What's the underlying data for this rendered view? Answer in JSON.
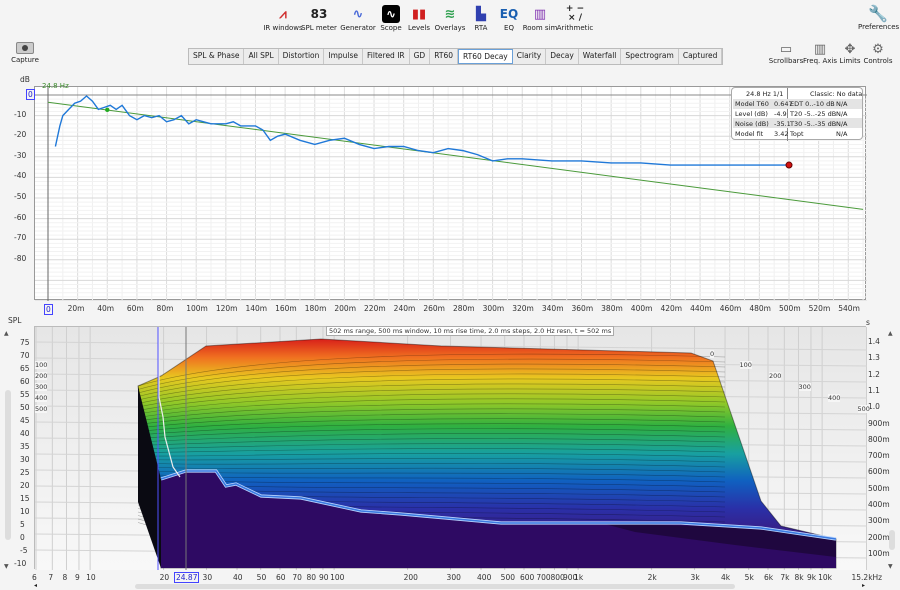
{
  "toolbar": [
    {
      "label": "IR windows",
      "icon": "ir-windows-icon"
    },
    {
      "label": "SPL meter",
      "icon": "spl-meter-icon",
      "value": "83",
      "sub": "dB SPL"
    },
    {
      "label": "Generator",
      "icon": "generator-icon"
    },
    {
      "label": "Scope",
      "icon": "scope-icon"
    },
    {
      "label": "Levels",
      "icon": "levels-icon"
    },
    {
      "label": "Overlays",
      "icon": "overlays-icon"
    },
    {
      "label": "RTA",
      "icon": "rta-icon"
    },
    {
      "label": "EQ",
      "icon": "eq-icon",
      "value": "EQ"
    },
    {
      "label": "Room sim",
      "icon": "room-sim-icon"
    },
    {
      "label": "Arithmetic",
      "icon": "arithmetic-icon",
      "value": "+ −\n× /"
    }
  ],
  "preferences": "Preferences",
  "capture": "Capture",
  "tabs": [
    "SPL & Phase",
    "All SPL",
    "Distortion",
    "Impulse",
    "Filtered IR",
    "GD",
    "RT60",
    "RT60 Decay",
    "Clarity",
    "Decay",
    "Waterfall",
    "Spectrogram",
    "Captured"
  ],
  "active_tab": "RT60 Decay",
  "right_buttons": [
    "Scrollbars",
    "Freq. Axis",
    "Limits",
    "Controls"
  ],
  "top_chart": {
    "ylabel": "dB",
    "cursor_freq": "24.8 Hz",
    "cursor_level": "0",
    "yticks": [
      "-10",
      "-20",
      "-30",
      "-40",
      "-50",
      "-60",
      "-70",
      "-80"
    ],
    "xticks": [
      "0",
      "20m",
      "40m",
      "60m",
      "80m",
      "100m",
      "120m",
      "140m",
      "160m",
      "180m",
      "200m",
      "220m",
      "240m",
      "260m",
      "280m",
      "300m",
      "320m",
      "340m",
      "360m",
      "380m",
      "400m",
      "420m",
      "440m",
      "460m",
      "480m",
      "500m",
      "520m",
      "540m"
    ],
    "info": {
      "title": "24.8 Hz 1/1",
      "classic": "Classic: No data",
      "rows": [
        [
          "Model T60",
          "0.647",
          "EDT  0..-10 dB",
          "N/A"
        ],
        [
          "Level (dB)",
          "-4.9",
          "T20 -5..-25 dB",
          "N/A"
        ],
        [
          "Noise (dB)",
          "-35.1",
          "T30 -5..-35 dB",
          "N/A"
        ],
        [
          "Model fit",
          "3.42",
          "Topt",
          "N/A"
        ]
      ]
    },
    "decay_ms": [
      5,
      8,
      10,
      14,
      18,
      22,
      26,
      30,
      34,
      38,
      42,
      46,
      50,
      55,
      60,
      65,
      70,
      75,
      80,
      85,
      90,
      95,
      100,
      105,
      110,
      120,
      125,
      130,
      140,
      145,
      150,
      155,
      160,
      170,
      180,
      190,
      200,
      210,
      220,
      230,
      240,
      250,
      260,
      270,
      280,
      290,
      300,
      310,
      320,
      340,
      360,
      380,
      400,
      420,
      440,
      460,
      480,
      500
    ],
    "decay_db": [
      -25,
      -15,
      -10,
      -7,
      -4,
      -3,
      -0.5,
      -3,
      -7,
      -6,
      -5,
      -7,
      -5,
      -10,
      -12,
      -10,
      -11,
      -10,
      -13,
      -12,
      -10,
      -14,
      -12,
      -13,
      -14,
      -14,
      -13,
      -15,
      -15,
      -17,
      -22,
      -20,
      -19,
      -22,
      -24,
      -22,
      -21,
      -24,
      -26,
      -25,
      -25,
      -27,
      -28,
      -26,
      -27,
      -29,
      -32,
      -31,
      -31,
      -32,
      -32,
      -33,
      -33,
      -34,
      -34,
      -34,
      -34,
      -34
    ],
    "model_line": {
      "t0_ms": 0,
      "db0": -3.5,
      "t1_ms": 550,
      "db1": -55.5
    },
    "colors": {
      "decay": "#1f78d8",
      "model": "#4a9a3a",
      "end_marker": "#d01010"
    }
  },
  "waterfall": {
    "ylabel": "SPL",
    "rlabel": "s",
    "info": "502 ms range, 500 ms window, 10 ms rise time, 2.0 ms steps,  2.0 Hz resn, t = 502 ms",
    "yticks": [
      "75",
      "70",
      "65",
      "60",
      "55",
      "50",
      "45",
      "40",
      "35",
      "30",
      "25",
      "20",
      "15",
      "10",
      "5",
      "0",
      "-5",
      "-10"
    ],
    "rticks": [
      "1.4",
      "1.3",
      "1.2",
      "1.1",
      "1.0",
      "900m",
      "800m",
      "700m",
      "600m",
      "500m",
      "400m",
      "300m",
      "200m",
      "100m"
    ],
    "time_labels": [
      "0",
      "100",
      "200",
      "300",
      "400",
      "500"
    ],
    "freq_ticks": [
      [
        "6",
        6
      ],
      [
        "7",
        7
      ],
      [
        "8",
        8
      ],
      [
        "9",
        9
      ],
      [
        "10",
        10
      ],
      [
        "20",
        20
      ],
      [
        "30",
        30
      ],
      [
        "40",
        40
      ],
      [
        "50",
        50
      ],
      [
        "60",
        60
      ],
      [
        "70",
        70
      ],
      [
        "80",
        80
      ],
      [
        "90",
        90
      ],
      [
        "100",
        100
      ],
      [
        "200",
        200
      ],
      [
        "300",
        300
      ],
      [
        "400",
        400
      ],
      [
        "500",
        500
      ],
      [
        "600",
        600
      ],
      [
        "700",
        700
      ],
      [
        "800",
        800
      ],
      [
        "900",
        900
      ],
      [
        "1k",
        1000
      ],
      [
        "2k",
        2000
      ],
      [
        "3k",
        3000
      ],
      [
        "4k",
        4000
      ],
      [
        "5k",
        5000
      ],
      [
        "6k",
        6000
      ],
      [
        "7k",
        7000
      ],
      [
        "8k",
        8000
      ],
      [
        "9k",
        9000
      ],
      [
        "10k",
        10000
      ],
      [
        "15.2kHz",
        15200
      ]
    ],
    "cursor_freq": "24.87"
  }
}
